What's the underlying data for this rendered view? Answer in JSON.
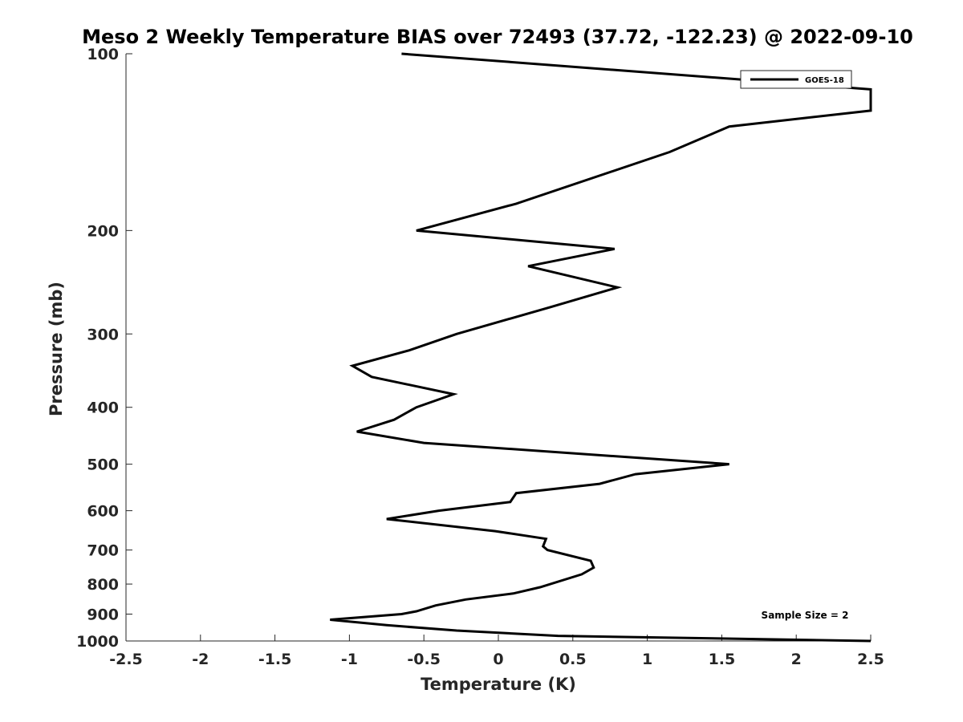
{
  "chart_data": {
    "type": "line",
    "title": "Meso 2 Weekly Temperature BIAS over 72493 (37.72, -122.23) @ 2022-09-10",
    "xlabel": "Temperature (K)",
    "ylabel": "Pressure (mb)",
    "xlim": [
      -2.5,
      2.5
    ],
    "ylim": [
      100,
      1000
    ],
    "yscale": "log",
    "y_reversed": true,
    "grid": false,
    "legend_position": "top-right",
    "x_ticks": [
      -2.5,
      -2,
      -1.5,
      -1,
      -0.5,
      0,
      0.5,
      1,
      1.5,
      2,
      2.5
    ],
    "x_tick_labels": [
      "-2.5",
      "-2",
      "-1.5",
      "-1",
      "-0.5",
      "0",
      "0.5",
      "1",
      "1.5",
      "2",
      "2.5"
    ],
    "y_ticks": [
      100,
      200,
      300,
      400,
      500,
      600,
      700,
      800,
      900,
      1000
    ],
    "y_tick_labels": [
      "100",
      "200",
      "300",
      "400",
      "500",
      "600",
      "700",
      "800",
      "900",
      "1000"
    ],
    "annotation": "Sample Size = 2",
    "series": [
      {
        "name": "GOES-18",
        "color": "#000000",
        "points": [
          {
            "x": -0.65,
            "y": 100
          },
          {
            "x": 2.5,
            "y": 115
          },
          {
            "x": 2.5,
            "y": 125
          },
          {
            "x": 1.55,
            "y": 133
          },
          {
            "x": 1.15,
            "y": 147
          },
          {
            "x": 0.12,
            "y": 180
          },
          {
            "x": -0.55,
            "y": 200
          },
          {
            "x": 0.78,
            "y": 215
          },
          {
            "x": 0.2,
            "y": 230
          },
          {
            "x": 0.8,
            "y": 250
          },
          {
            "x": 0.35,
            "y": 270
          },
          {
            "x": -0.28,
            "y": 300
          },
          {
            "x": -0.6,
            "y": 320
          },
          {
            "x": -0.98,
            "y": 340
          },
          {
            "x": -0.85,
            "y": 355
          },
          {
            "x": -0.3,
            "y": 380
          },
          {
            "x": -0.55,
            "y": 400
          },
          {
            "x": -0.7,
            "y": 420
          },
          {
            "x": -0.95,
            "y": 440
          },
          {
            "x": -0.5,
            "y": 460
          },
          {
            "x": 1.55,
            "y": 500
          },
          {
            "x": 0.92,
            "y": 520
          },
          {
            "x": 0.68,
            "y": 540
          },
          {
            "x": 0.12,
            "y": 560
          },
          {
            "x": 0.08,
            "y": 580
          },
          {
            "x": -0.4,
            "y": 600
          },
          {
            "x": -0.75,
            "y": 620
          },
          {
            "x": -0.02,
            "y": 650
          },
          {
            "x": 0.32,
            "y": 670
          },
          {
            "x": 0.3,
            "y": 690
          },
          {
            "x": 0.33,
            "y": 700
          },
          {
            "x": 0.62,
            "y": 730
          },
          {
            "x": 0.64,
            "y": 750
          },
          {
            "x": 0.56,
            "y": 770
          },
          {
            "x": 0.28,
            "y": 810
          },
          {
            "x": 0.1,
            "y": 830
          },
          {
            "x": -0.22,
            "y": 850
          },
          {
            "x": -0.42,
            "y": 870
          },
          {
            "x": -0.55,
            "y": 890
          },
          {
            "x": -0.65,
            "y": 900
          },
          {
            "x": -1.13,
            "y": 920
          },
          {
            "x": -0.75,
            "y": 940
          },
          {
            "x": -0.28,
            "y": 960
          },
          {
            "x": 0.4,
            "y": 980
          },
          {
            "x": 2.5,
            "y": 1000
          }
        ]
      }
    ]
  }
}
